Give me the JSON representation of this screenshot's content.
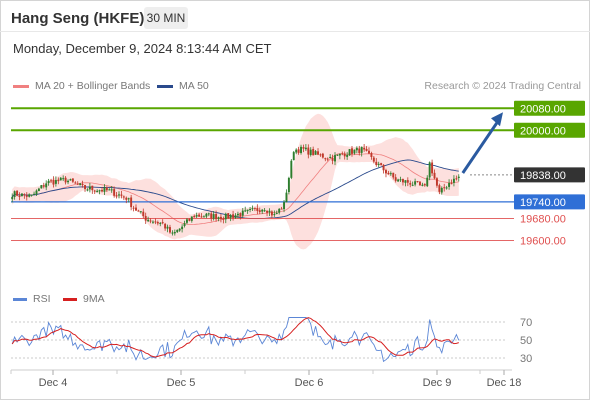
{
  "header": {
    "title": "Hang Seng (HKFE)",
    "timeframe": "30 MIN",
    "datetime": "Monday, December 9, 2024 8:13:44 AM CET"
  },
  "legend": {
    "bollinger": "MA 20 + Bollinger Bands",
    "ma50": "MA 50",
    "credit": "Research © 2024 Trading Central"
  },
  "rsi_legend": {
    "rsi": "RSI",
    "ma9": "9MA"
  },
  "colors": {
    "bollinger": "#f08080",
    "ma50": "#2a4a8c",
    "resistance": "#59a600",
    "pivot": "#2f6fd6",
    "support": "#e05050",
    "current": "#333333",
    "arrow": "#2a5aa0",
    "up_candle": "#2d7d2d",
    "down_candle": "#c0392b",
    "rsi": "#5b86d6",
    "rsi_ma": "#d62020"
  },
  "chart_data": {
    "type": "candlestick",
    "price_range": [
      19500,
      20110
    ],
    "levels": [
      {
        "label": "20080.00",
        "value": 20080,
        "kind": "resistance"
      },
      {
        "label": "20000.00",
        "value": 20000,
        "kind": "resistance"
      },
      {
        "label": "19838.00",
        "value": 19838,
        "kind": "current"
      },
      {
        "label": "19740.00",
        "value": 19740,
        "kind": "pivot"
      },
      {
        "label": "19680.00",
        "value": 19680,
        "kind": "support"
      },
      {
        "label": "19600.00",
        "value": 19600,
        "kind": "support"
      }
    ],
    "x_ticks": [
      "Dec 4",
      "Dec 5",
      "Dec 6",
      "Dec 9",
      "Dec 18"
    ],
    "rsi_ticks": [
      "70",
      "50",
      "30"
    ],
    "rsi_range": [
      20,
      80
    ]
  }
}
